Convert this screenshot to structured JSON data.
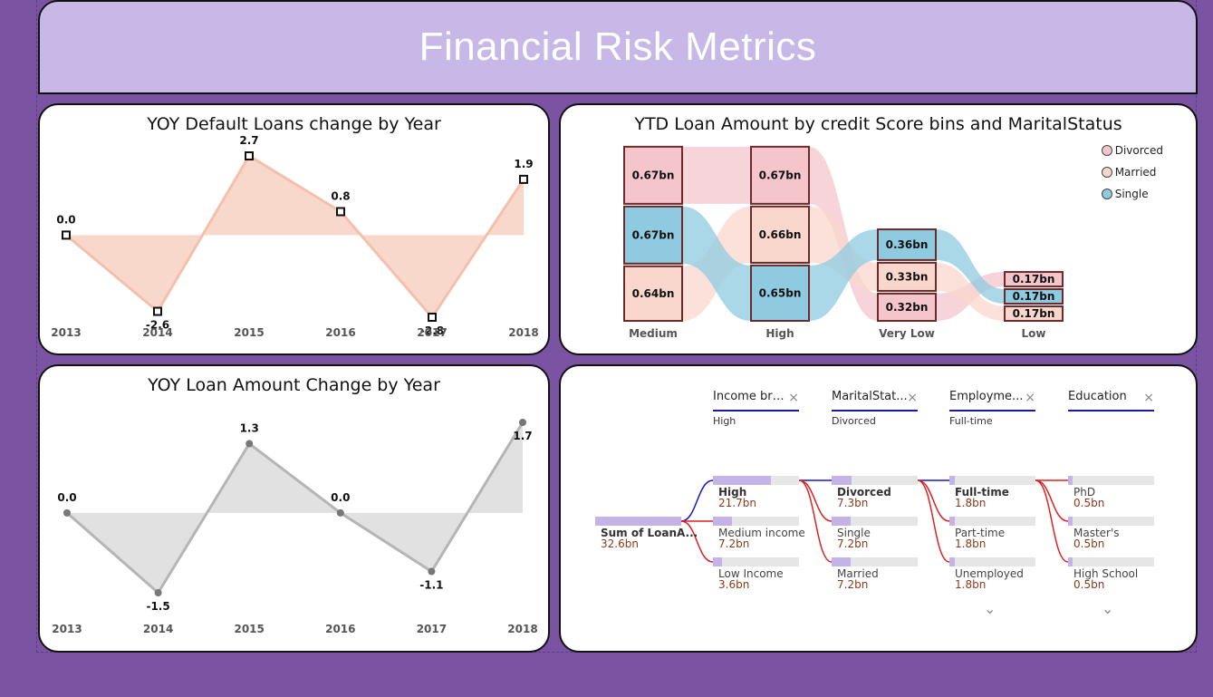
{
  "header": {
    "title": "Financial Risk Metrics"
  },
  "chart_data": [
    {
      "type": "area",
      "title": "YOY Default Loans change by Year",
      "categories": [
        "2013",
        "2014",
        "2015",
        "2016",
        "2017",
        "2018"
      ],
      "values": [
        0.0,
        -2.6,
        2.7,
        0.8,
        -2.8,
        1.9
      ],
      "labels": [
        "0.0",
        "-2.6",
        "2.7",
        "0.8",
        "-2.8",
        "1.9"
      ],
      "color": "#f4b49a",
      "marker": "square",
      "ylim": [
        -2.8,
        2.7
      ]
    },
    {
      "type": "bar",
      "title": "YTD Loan Amount by credit Score bins and MaritalStatus",
      "categories": [
        "Medium",
        "High",
        "Very Low",
        "Low"
      ],
      "series": [
        {
          "name": "Divorced",
          "values": [
            0.67,
            0.67,
            0.32,
            0.17
          ],
          "labels": [
            "0.67bn",
            "0.67bn",
            "0.32bn",
            "0.17bn"
          ],
          "color": "#f4c6cc"
        },
        {
          "name": "Married",
          "values": [
            0.64,
            0.66,
            0.33,
            0.17
          ],
          "labels": [
            "0.64bn",
            "0.66bn",
            "0.33bn",
            "0.17bn"
          ],
          "color": "#f9d7cc"
        },
        {
          "name": "Single",
          "values": [
            0.67,
            0.65,
            0.36,
            0.17
          ],
          "labels": [
            "0.67bn",
            "0.65bn",
            "0.36bn",
            "0.17bn"
          ],
          "color": "#8ecbe0"
        }
      ],
      "legend": [
        "Divorced",
        "Married",
        "Single"
      ],
      "legend_position": "top-right"
    },
    {
      "type": "area",
      "title": "YOY Loan Amount Change by Year",
      "categories": [
        "2013",
        "2014",
        "2015",
        "2016",
        "2017",
        "2018"
      ],
      "values": [
        0.0,
        -1.5,
        1.3,
        0.0,
        -1.1,
        1.7
      ],
      "labels": [
        "0.0",
        "-1.5",
        "1.3",
        "0.0",
        "-1.1",
        "1.7"
      ],
      "color": "#aaaaaa",
      "marker": "circle",
      "ylim": [
        -1.5,
        1.7
      ]
    }
  ],
  "decomp": {
    "headers": [
      {
        "label": "Income bra...",
        "selected": "High"
      },
      {
        "label": "MaritalStat...",
        "selected": "Divorced"
      },
      {
        "label": "Employme...",
        "selected": "Full-time"
      },
      {
        "label": "Education",
        "selected": ""
      }
    ],
    "close_glyph": "×",
    "root": {
      "label": "Sum of LoanA...",
      "value": "32.6bn"
    },
    "levels": [
      [
        {
          "label": "High",
          "value": "21.7bn",
          "fraction": 0.67
        },
        {
          "label": "Medium income",
          "value": "7.2bn",
          "fraction": 0.22
        },
        {
          "label": "Low Income",
          "value": "3.6bn",
          "fraction": 0.11
        }
      ],
      [
        {
          "label": "Divorced",
          "value": "7.3bn",
          "fraction": 0.23
        },
        {
          "label": "Single",
          "value": "7.2bn",
          "fraction": 0.22
        },
        {
          "label": "Married",
          "value": "7.2bn",
          "fraction": 0.22
        }
      ],
      [
        {
          "label": "Full-time",
          "value": "1.8bn",
          "fraction": 0.06
        },
        {
          "label": "Part-time",
          "value": "1.8bn",
          "fraction": 0.06
        },
        {
          "label": "Unemployed",
          "value": "1.8bn",
          "fraction": 0.06
        }
      ],
      [
        {
          "label": "PhD",
          "value": "0.5bn",
          "fraction": 0.015
        },
        {
          "label": "Master's",
          "value": "0.5bn",
          "fraction": 0.015
        },
        {
          "label": "High School",
          "value": "0.5bn",
          "fraction": 0.015
        }
      ]
    ],
    "chevron_glyph": "⌄"
  }
}
